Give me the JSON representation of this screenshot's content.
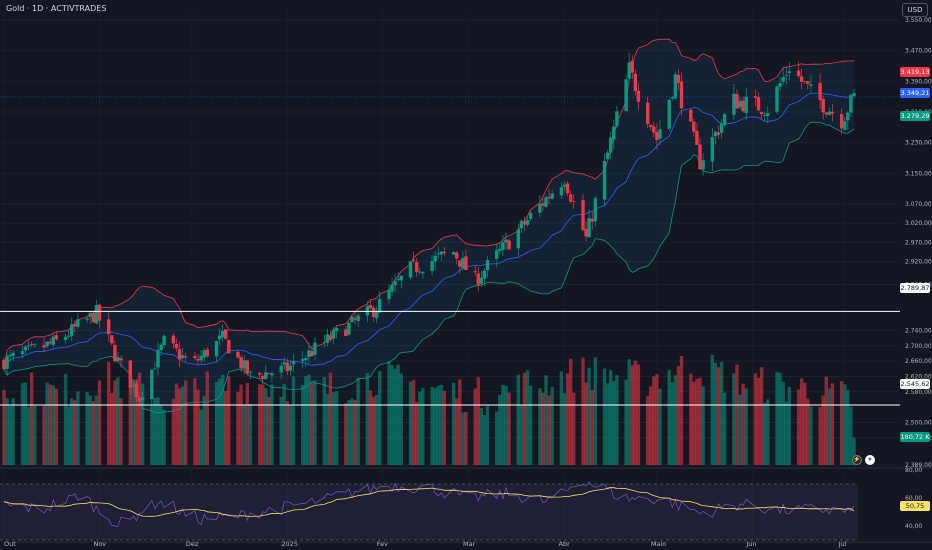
{
  "header": {
    "title": "Gold · 1D · ACTIVTRADES",
    "currency": "USD"
  },
  "badges": {
    "upper_band": "3.419,13",
    "last_close": "3.349,21",
    "lower_band": "3.279,29",
    "hline_1": "2.789,87",
    "hline_2": "2.545,62",
    "volume": "180,72 K",
    "rsi_ma": "50,75"
  },
  "colors": {
    "background": "#131722",
    "up": "#089981",
    "down": "#f23645",
    "basis": "#2962ff",
    "rsi": "#7e57c2",
    "rsi_ma": "#f7e266"
  },
  "chart_data": [
    {
      "type": "candlestick",
      "title": "Gold · 1D · ACTIVTRADES",
      "y_ticks": [
        "3.550,00",
        "3.470,00",
        "3.390,00",
        "3.310,00",
        "3.230,00",
        "3.150,00",
        "3.070,00",
        "3.020,00",
        "2.970,00",
        "2.920,00",
        "2.860,00",
        "2.740,00",
        "2.700,00",
        "2.660,00",
        "2.620,00",
        "2.580,00",
        "2.500,00",
        "2.460,00",
        "2.389,00"
      ],
      "x_ticks": [
        "Out",
        "Nov",
        "Dez",
        "2025",
        "Fev",
        "Mar",
        "Abr",
        "Maio",
        "Jun",
        "Jul"
      ],
      "ylim": [
        2389,
        3550
      ],
      "anchors": [
        {
          "date": "2024-10-01",
          "price": 2660
        },
        {
          "date": "2024-10-18",
          "price": 2710
        },
        {
          "date": "2024-10-31",
          "price": 2785
        },
        {
          "date": "2024-11-07",
          "price": 2660
        },
        {
          "date": "2024-11-14",
          "price": 2565
        },
        {
          "date": "2024-11-22",
          "price": 2710
        },
        {
          "date": "2024-12-01",
          "price": 2650
        },
        {
          "date": "2024-12-11",
          "price": 2720
        },
        {
          "date": "2024-12-20",
          "price": 2620
        },
        {
          "date": "2025-01-01",
          "price": 2640
        },
        {
          "date": "2025-01-15",
          "price": 2720
        },
        {
          "date": "2025-01-30",
          "price": 2800
        },
        {
          "date": "2025-02-10",
          "price": 2900
        },
        {
          "date": "2025-02-24",
          "price": 2945
        },
        {
          "date": "2025-03-03",
          "price": 2870
        },
        {
          "date": "2025-03-17",
          "price": 3000
        },
        {
          "date": "2025-04-01",
          "price": 3140
        },
        {
          "date": "2025-04-08",
          "price": 2980
        },
        {
          "date": "2025-04-22",
          "price": 3420
        },
        {
          "date": "2025-05-01",
          "price": 3240
        },
        {
          "date": "2025-05-07",
          "price": 3400
        },
        {
          "date": "2025-05-15",
          "price": 3180
        },
        {
          "date": "2025-05-26",
          "price": 3340
        },
        {
          "date": "2025-06-06",
          "price": 3320
        },
        {
          "date": "2025-06-13",
          "price": 3430
        },
        {
          "date": "2025-06-20",
          "price": 3360
        },
        {
          "date": "2025-06-30",
          "price": 3290
        },
        {
          "date": "2025-07-04",
          "price": 3349
        }
      ],
      "bollinger_last": {
        "upper": 3419.13,
        "basis": 3349.21,
        "lower": 3279.29
      },
      "hlines": [
        2789.87,
        2545.62
      ]
    },
    {
      "type": "bar",
      "name": "Volume",
      "last_value": "180,72 K",
      "level_anchors": [
        0.72,
        0.66,
        0.78,
        0.62,
        0.7,
        0.74,
        0.68,
        0.8,
        0.7,
        0.62,
        0.75,
        0.85,
        0.78,
        0.9,
        0.74,
        0.7,
        0.58
      ]
    },
    {
      "type": "line",
      "name": "RSI",
      "y_ticks": [
        "80,00",
        "60,00",
        "40,00"
      ],
      "ylim": [
        30,
        80
      ],
      "bands": [
        70,
        30
      ],
      "last_ma": 50.75,
      "anchors": [
        55,
        52,
        62,
        40,
        58,
        45,
        47,
        52,
        57,
        64,
        69,
        67,
        60,
        63,
        57,
        73,
        60,
        59,
        49,
        56,
        51,
        52,
        50
      ]
    }
  ]
}
